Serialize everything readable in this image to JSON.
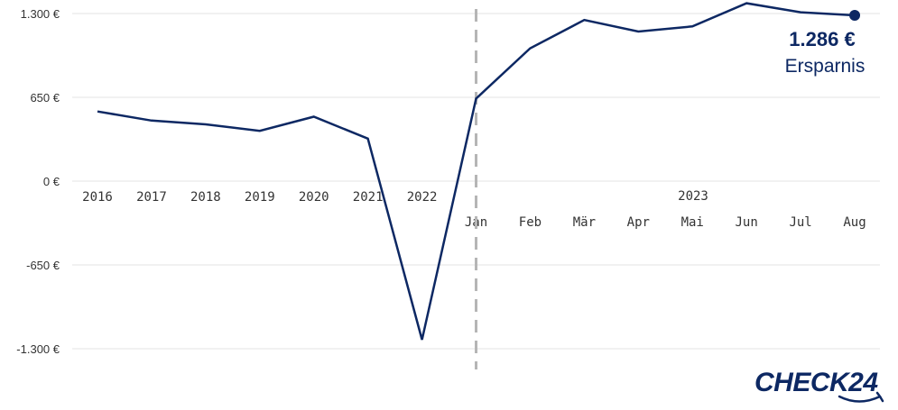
{
  "chart_data": {
    "type": "line",
    "y_ticks": [
      "1.300 €",
      "650 €",
      "0 €",
      "-650 €",
      "-1.300 €"
    ],
    "ylim": [
      -1300,
      1300
    ],
    "grid": true,
    "series": [
      {
        "points": [
          {
            "label": "2016",
            "value": 540
          },
          {
            "label": "2017",
            "value": 470
          },
          {
            "label": "2018",
            "value": 440
          },
          {
            "label": "2019",
            "value": 390
          },
          {
            "label": "2020",
            "value": 500
          },
          {
            "label": "2021",
            "value": 330
          },
          {
            "label": "2022",
            "value": -1230
          },
          {
            "label": "Jan",
            "value": 640
          },
          {
            "label": "Feb",
            "value": 1030
          },
          {
            "label": "Mär",
            "value": 1250
          },
          {
            "label": "Apr",
            "value": 1160
          },
          {
            "label": "Mai",
            "value": 1200
          },
          {
            "label": "Jun",
            "value": 1380
          },
          {
            "label": "Jul",
            "value": 1310
          },
          {
            "label": "Aug",
            "value": 1286
          }
        ],
        "color": "#0d2863"
      }
    ],
    "year_group_label": "2023",
    "divider_before": "Jan",
    "callout": {
      "value": "1.286 €",
      "label": "Ersparnis"
    }
  },
  "brand": {
    "logo_text": "CHECK24",
    "color": "#0d2863"
  }
}
